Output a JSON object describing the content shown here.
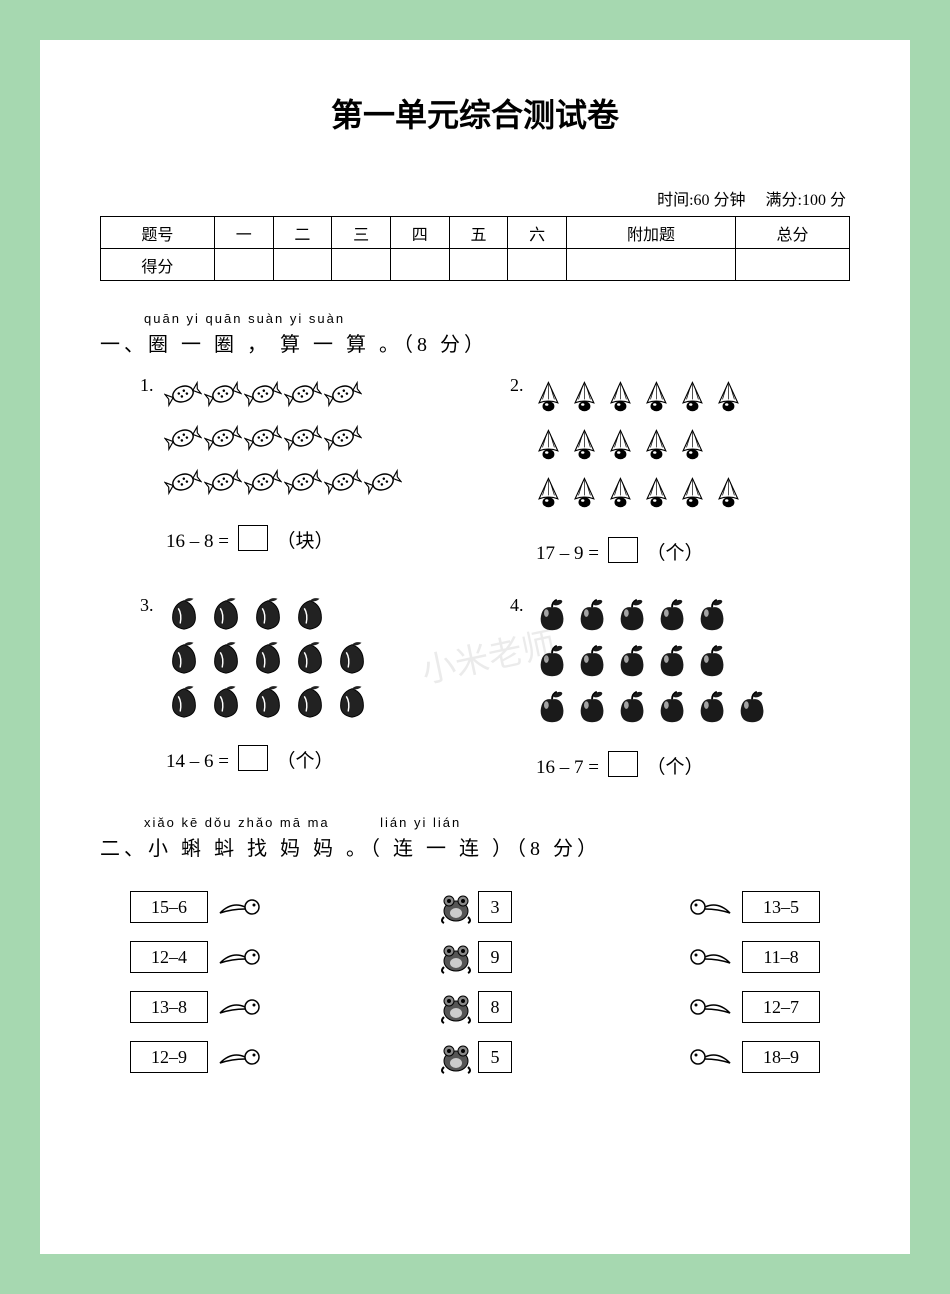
{
  "title": "第一单元综合测试卷",
  "meta": {
    "time": "时间:60 分钟",
    "full": "满分:100 分"
  },
  "score_table": {
    "headers": [
      "题号",
      "一",
      "二",
      "三",
      "四",
      "五",
      "六",
      "附加题",
      "总分"
    ],
    "row2_label": "得分"
  },
  "section1": {
    "pinyin": "quān  yi  quān     suàn  yi  suàn",
    "cn": "一、圈 一 圈 ， 算 一 算 。（8 分）",
    "items": [
      {
        "num": "1.",
        "rows": [
          5,
          5,
          6
        ],
        "eq": "16 – 8 =",
        "unit": "（块）",
        "kind": "candy"
      },
      {
        "num": "2.",
        "rows": [
          6,
          5,
          6
        ],
        "eq": "17 – 9 =",
        "unit": "（个）",
        "kind": "shuttle"
      },
      {
        "num": "3.",
        "rows": [
          4,
          5,
          5
        ],
        "eq": "14 – 6 =",
        "unit": "（个）",
        "kind": "peach"
      },
      {
        "num": "4.",
        "rows": [
          5,
          5,
          6
        ],
        "eq": "16 – 7 =",
        "unit": "（个）",
        "kind": "apple"
      }
    ]
  },
  "section2": {
    "pinyin1": "xiǎo  kē  dǒu  zhǎo  mā  ma",
    "pinyin2": "lián  yi  lián",
    "cn": "二、小 蝌 蚪 找 妈 妈 。（ 连 一 连 ）（8 分）",
    "left": [
      "15–6",
      "12–4",
      "13–8",
      "12–9"
    ],
    "mid": [
      "3",
      "9",
      "8",
      "5"
    ],
    "right": [
      "13–5",
      "11–8",
      "12–7",
      "18–9"
    ]
  },
  "watermark": "小米老师"
}
